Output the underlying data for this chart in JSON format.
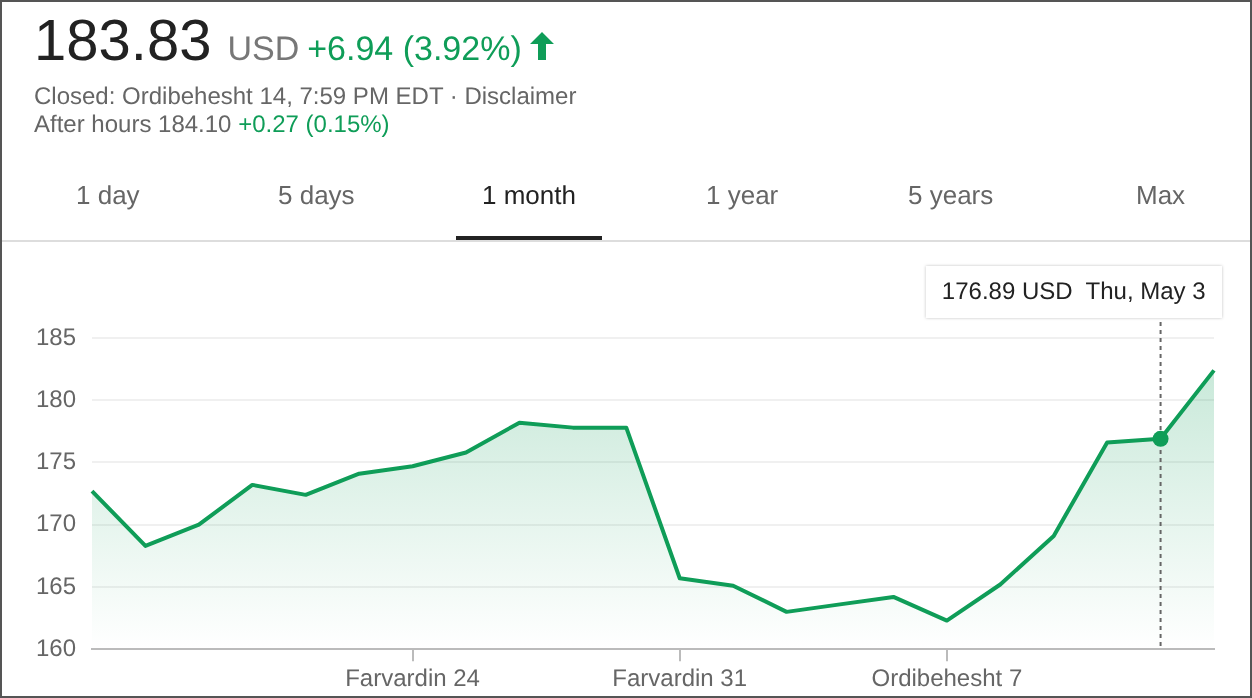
{
  "chart_data": {
    "type": "area",
    "title": "183.83",
    "annotations": [
      "USD",
      "+6.94 (3.92%)",
      "Closed: Ordibehesht 14, 7:59 PM EDT · Disclaimer",
      "After hours 184.10",
      "+0.27 (0.15%)",
      "1 day",
      "5 days",
      "1 month",
      "1 year",
      "5 years",
      "Max",
      "176.89 USD  Thu, May 3"
    ],
    "categories": [
      null,
      null,
      null,
      null,
      null,
      null,
      "Farvardin 24",
      null,
      null,
      null,
      null,
      "Farvardin 31",
      null,
      null,
      null,
      null,
      "Ordibehesht 7",
      null,
      null,
      null,
      null,
      null
    ],
    "series": [
      {
        "color": "#0f9d58",
        "values": [
          172.7,
          168.3,
          170.0,
          173.2,
          172.4,
          174.1,
          174.7,
          175.8,
          178.2,
          177.8,
          177.8,
          165.7,
          165.1,
          163.0,
          163.6,
          164.2,
          162.3,
          165.2,
          169.1,
          176.6,
          176.9,
          182.4
        ]
      }
    ],
    "ylim": [
      160,
      185
    ],
    "yticks": [
      160,
      165,
      170,
      175,
      180,
      185
    ],
    "grid": "y",
    "legend": false,
    "marker": "none"
  }
}
